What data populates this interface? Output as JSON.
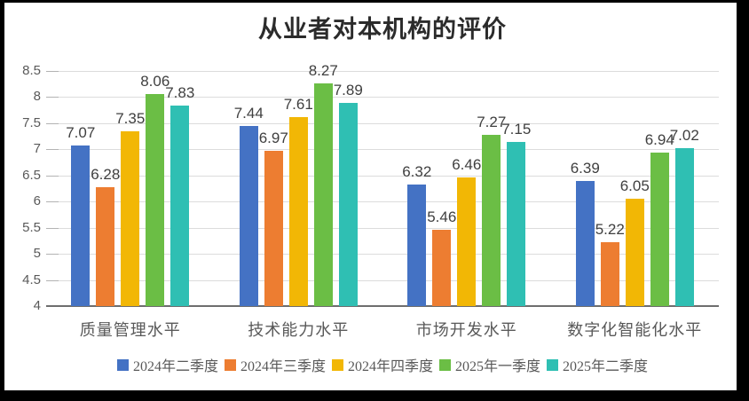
{
  "chart_data": {
    "type": "bar",
    "title": "从业者对本机构的评价",
    "categories": [
      "质量管理水平",
      "技术能力水平",
      "市场开发水平",
      "数字化智能化水平"
    ],
    "series": [
      {
        "name": "2024年二季度",
        "color": "#4472C4",
        "values": [
          7.07,
          7.44,
          6.32,
          6.39
        ]
      },
      {
        "name": "2024年三季度",
        "color": "#ED7D31",
        "values": [
          6.28,
          6.97,
          5.46,
          5.22
        ]
      },
      {
        "name": "2024年四季度",
        "color": "#F2B705",
        "values": [
          7.35,
          7.61,
          6.46,
          6.05
        ]
      },
      {
        "name": "2025年一季度",
        "color": "#6BBE45",
        "values": [
          8.06,
          8.27,
          7.27,
          6.94
        ]
      },
      {
        "name": "2025年二季度",
        "color": "#2FBFB3",
        "values": [
          7.83,
          7.89,
          7.15,
          7.02
        ]
      }
    ],
    "ylim": [
      4,
      8.5
    ],
    "yticks": [
      8.5,
      8,
      7.5,
      7,
      6.5,
      6,
      5.5,
      5,
      4.5,
      4
    ],
    "xlabel": "",
    "ylabel": "",
    "grid": true,
    "data_labels": true,
    "legend_position": "bottom",
    "colors": {
      "frame_border": "#000000",
      "chart_background": "#ffffff",
      "gridline": "#dcdcdc",
      "axis_line": "#6e6e6e",
      "title_text": "#2b2b2b",
      "axis_text": "#595959",
      "data_label_text": "#3f3f3f"
    }
  }
}
